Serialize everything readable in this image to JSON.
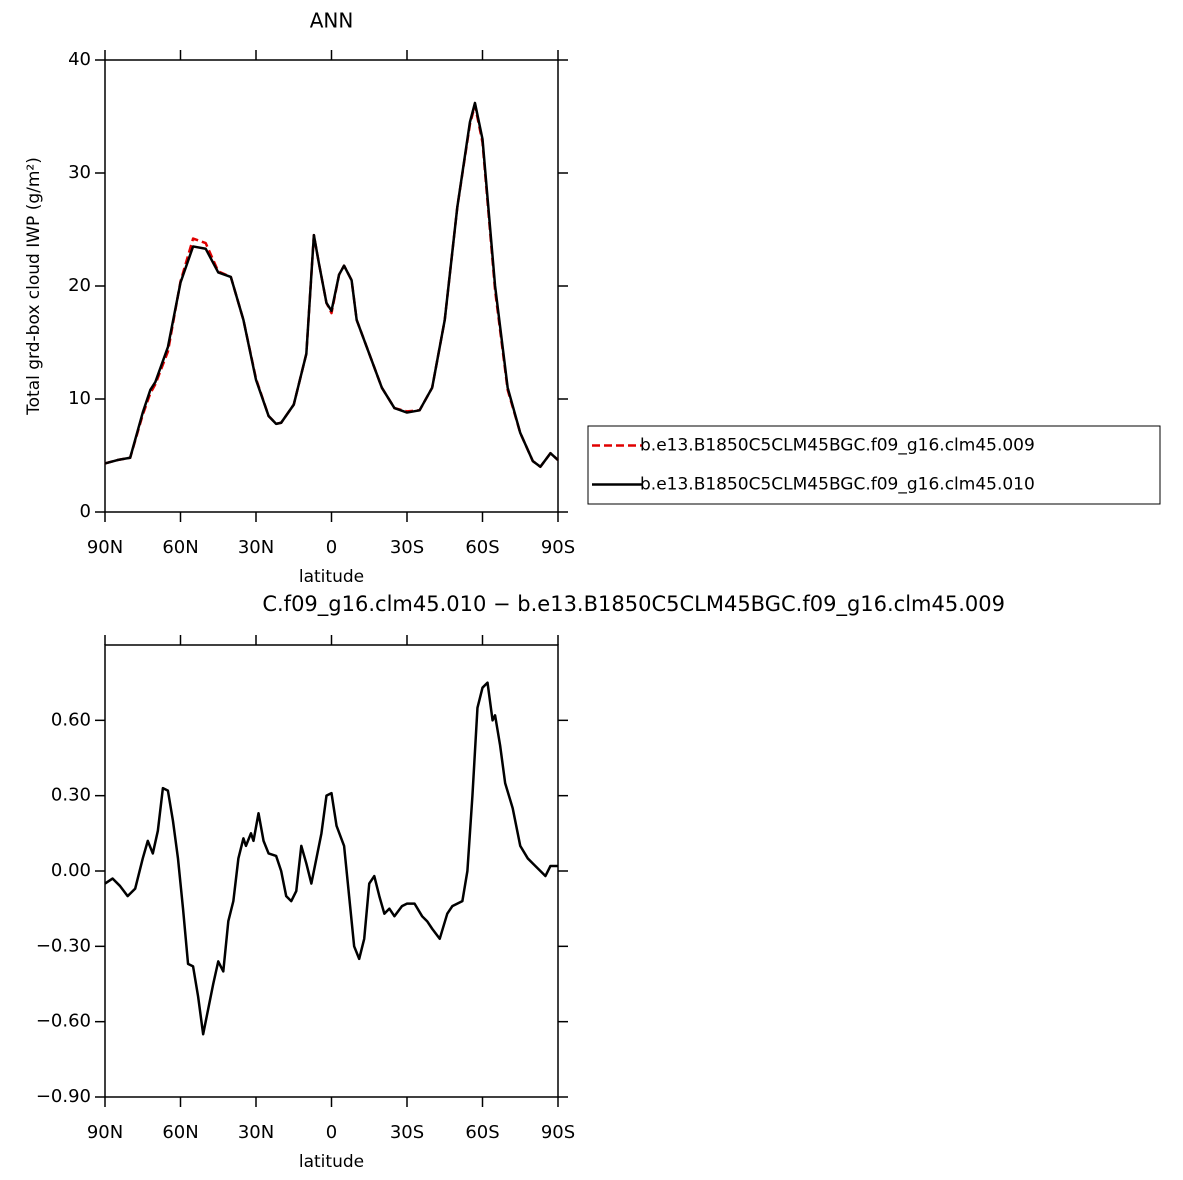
{
  "chart_data": [
    {
      "type": "line",
      "title": "ANN",
      "x_label": "latitude",
      "y_label": "Total grd-box cloud IWP (g/m²)",
      "xlim": [
        90,
        -90
      ],
      "ylim": [
        0,
        40
      ],
      "xticks": [
        {
          "value": 90,
          "label": "90N"
        },
        {
          "value": 60,
          "label": "60N"
        },
        {
          "value": 30,
          "label": "30N"
        },
        0,
        {
          "value": -30,
          "label": "30S"
        },
        {
          "value": -60,
          "label": "60S"
        },
        {
          "value": -90,
          "label": "90S"
        }
      ],
      "yticks": [
        0,
        10,
        20,
        30,
        40
      ],
      "legend": "right",
      "x": [
        90,
        85,
        80,
        75,
        72,
        70,
        65,
        60,
        55,
        50,
        45,
        40,
        35,
        30,
        25,
        22,
        20,
        15,
        10,
        7,
        5,
        2,
        0,
        -3,
        -5,
        -8,
        -10,
        -15,
        -20,
        -25,
        -30,
        -35,
        -40,
        -45,
        -50,
        -55,
        -57,
        -60,
        -65,
        -70,
        -75,
        -80,
        -83,
        -87,
        -90
      ],
      "series": [
        {
          "name": "b.e13.B1850C5CLM45BGC.f09_g16.clm45.009",
          "color": "#e00000",
          "dashed": true,
          "values": [
            4.3,
            4.6,
            4.8,
            8.6,
            10.5,
            11.3,
            14.2,
            20.4,
            24.2,
            23.8,
            21.3,
            20.8,
            17,
            11.8,
            8.5,
            7.8,
            7.9,
            9.5,
            14,
            24.5,
            22,
            18.5,
            17.6,
            21,
            21.8,
            20.5,
            17,
            14,
            11,
            9.2,
            8.9,
            9.0,
            11,
            17,
            27,
            34.3,
            36.0,
            32.7,
            19.6,
            10.8,
            7,
            4.5,
            4.0,
            5.2,
            4.6
          ]
        },
        {
          "name": "b.e13.B1850C5CLM45BGC.f09_g16.clm45.010",
          "color": "#000000",
          "dashed": false,
          "values": [
            4.3,
            4.6,
            4.8,
            8.8,
            10.8,
            11.5,
            14.6,
            20.3,
            23.5,
            23.3,
            21.2,
            20.8,
            17,
            11.7,
            8.5,
            7.8,
            7.9,
            9.5,
            14,
            24.5,
            22,
            18.5,
            17.8,
            21,
            21.8,
            20.5,
            17,
            14,
            11,
            9.2,
            8.8,
            9.0,
            11,
            17,
            27,
            34.5,
            36.2,
            33,
            20,
            11,
            7,
            4.5,
            4.0,
            5.2,
            4.6
          ]
        }
      ]
    },
    {
      "type": "line",
      "title": "C.f09_g16.clm45.010 − b.e13.B1850C5CLM45BGC.f09_g16.clm45.009",
      "x_label": "latitude",
      "xlim": [
        90,
        -90
      ],
      "ylim": [
        -0.9,
        0.9
      ],
      "xticks": [
        {
          "value": 90,
          "label": "90N"
        },
        {
          "value": 60,
          "label": "60N"
        },
        {
          "value": 30,
          "label": "30N"
        },
        0,
        {
          "value": -30,
          "label": "30S"
        },
        {
          "value": -60,
          "label": "60S"
        },
        {
          "value": -90,
          "label": "90S"
        }
      ],
      "yticks": [
        {
          "value": -0.9,
          "label": "−0.90"
        },
        {
          "value": -0.6,
          "label": "−0.60"
        },
        {
          "value": -0.3,
          "label": "−0.30"
        },
        {
          "value": 0,
          "label": "0.00"
        },
        {
          "value": 0.3,
          "label": "0.30"
        },
        {
          "value": 0.6,
          "label": "0.60"
        }
      ],
      "x": [
        90,
        87,
        84,
        81,
        78,
        75,
        73,
        71,
        69,
        67,
        65,
        63,
        61,
        59,
        57,
        55,
        53,
        51,
        49,
        47,
        45,
        43,
        41,
        39,
        37,
        35,
        34,
        32,
        31,
        29,
        27,
        25,
        22,
        20,
        18,
        16,
        14,
        12,
        10,
        8,
        6,
        4,
        2,
        0,
        -2,
        -5,
        -7,
        -9,
        -11,
        -13,
        -15,
        -17,
        -19,
        -21,
        -23,
        -25,
        -28,
        -30,
        -33,
        -36,
        -38,
        -40,
        -43,
        -46,
        -48,
        -52,
        -54,
        -56,
        -58,
        -60,
        -62,
        -64,
        -65,
        -67,
        -69,
        -72,
        -75,
        -78,
        -80,
        -83,
        -85,
        -87,
        -90
      ],
      "series": [
        {
          "color": "#000000",
          "dashed": false,
          "values": [
            -0.05,
            -0.03,
            -0.06,
            -0.1,
            -0.07,
            0.05,
            0.12,
            0.07,
            0.16,
            0.33,
            0.32,
            0.2,
            0.05,
            -0.15,
            -0.37,
            -0.38,
            -0.5,
            -0.65,
            -0.55,
            -0.45,
            -0.36,
            -0.4,
            -0.2,
            -0.12,
            0.05,
            0.13,
            0.1,
            0.15,
            0.12,
            0.23,
            0.12,
            0.07,
            0.06,
            0.0,
            -0.1,
            -0.12,
            -0.08,
            0.1,
            0.03,
            -0.05,
            0.05,
            0.15,
            0.3,
            0.31,
            0.18,
            0.1,
            -0.1,
            -0.3,
            -0.35,
            -0.27,
            -0.05,
            -0.02,
            -0.1,
            -0.17,
            -0.15,
            -0.18,
            -0.14,
            -0.13,
            -0.13,
            -0.18,
            -0.2,
            -0.23,
            -0.27,
            -0.17,
            -0.14,
            -0.12,
            0.0,
            0.3,
            0.65,
            0.73,
            0.75,
            0.6,
            0.62,
            0.5,
            0.35,
            0.25,
            0.1,
            0.05,
            0.03,
            0.0,
            -0.02,
            0.02,
            0.02
          ]
        }
      ]
    }
  ]
}
